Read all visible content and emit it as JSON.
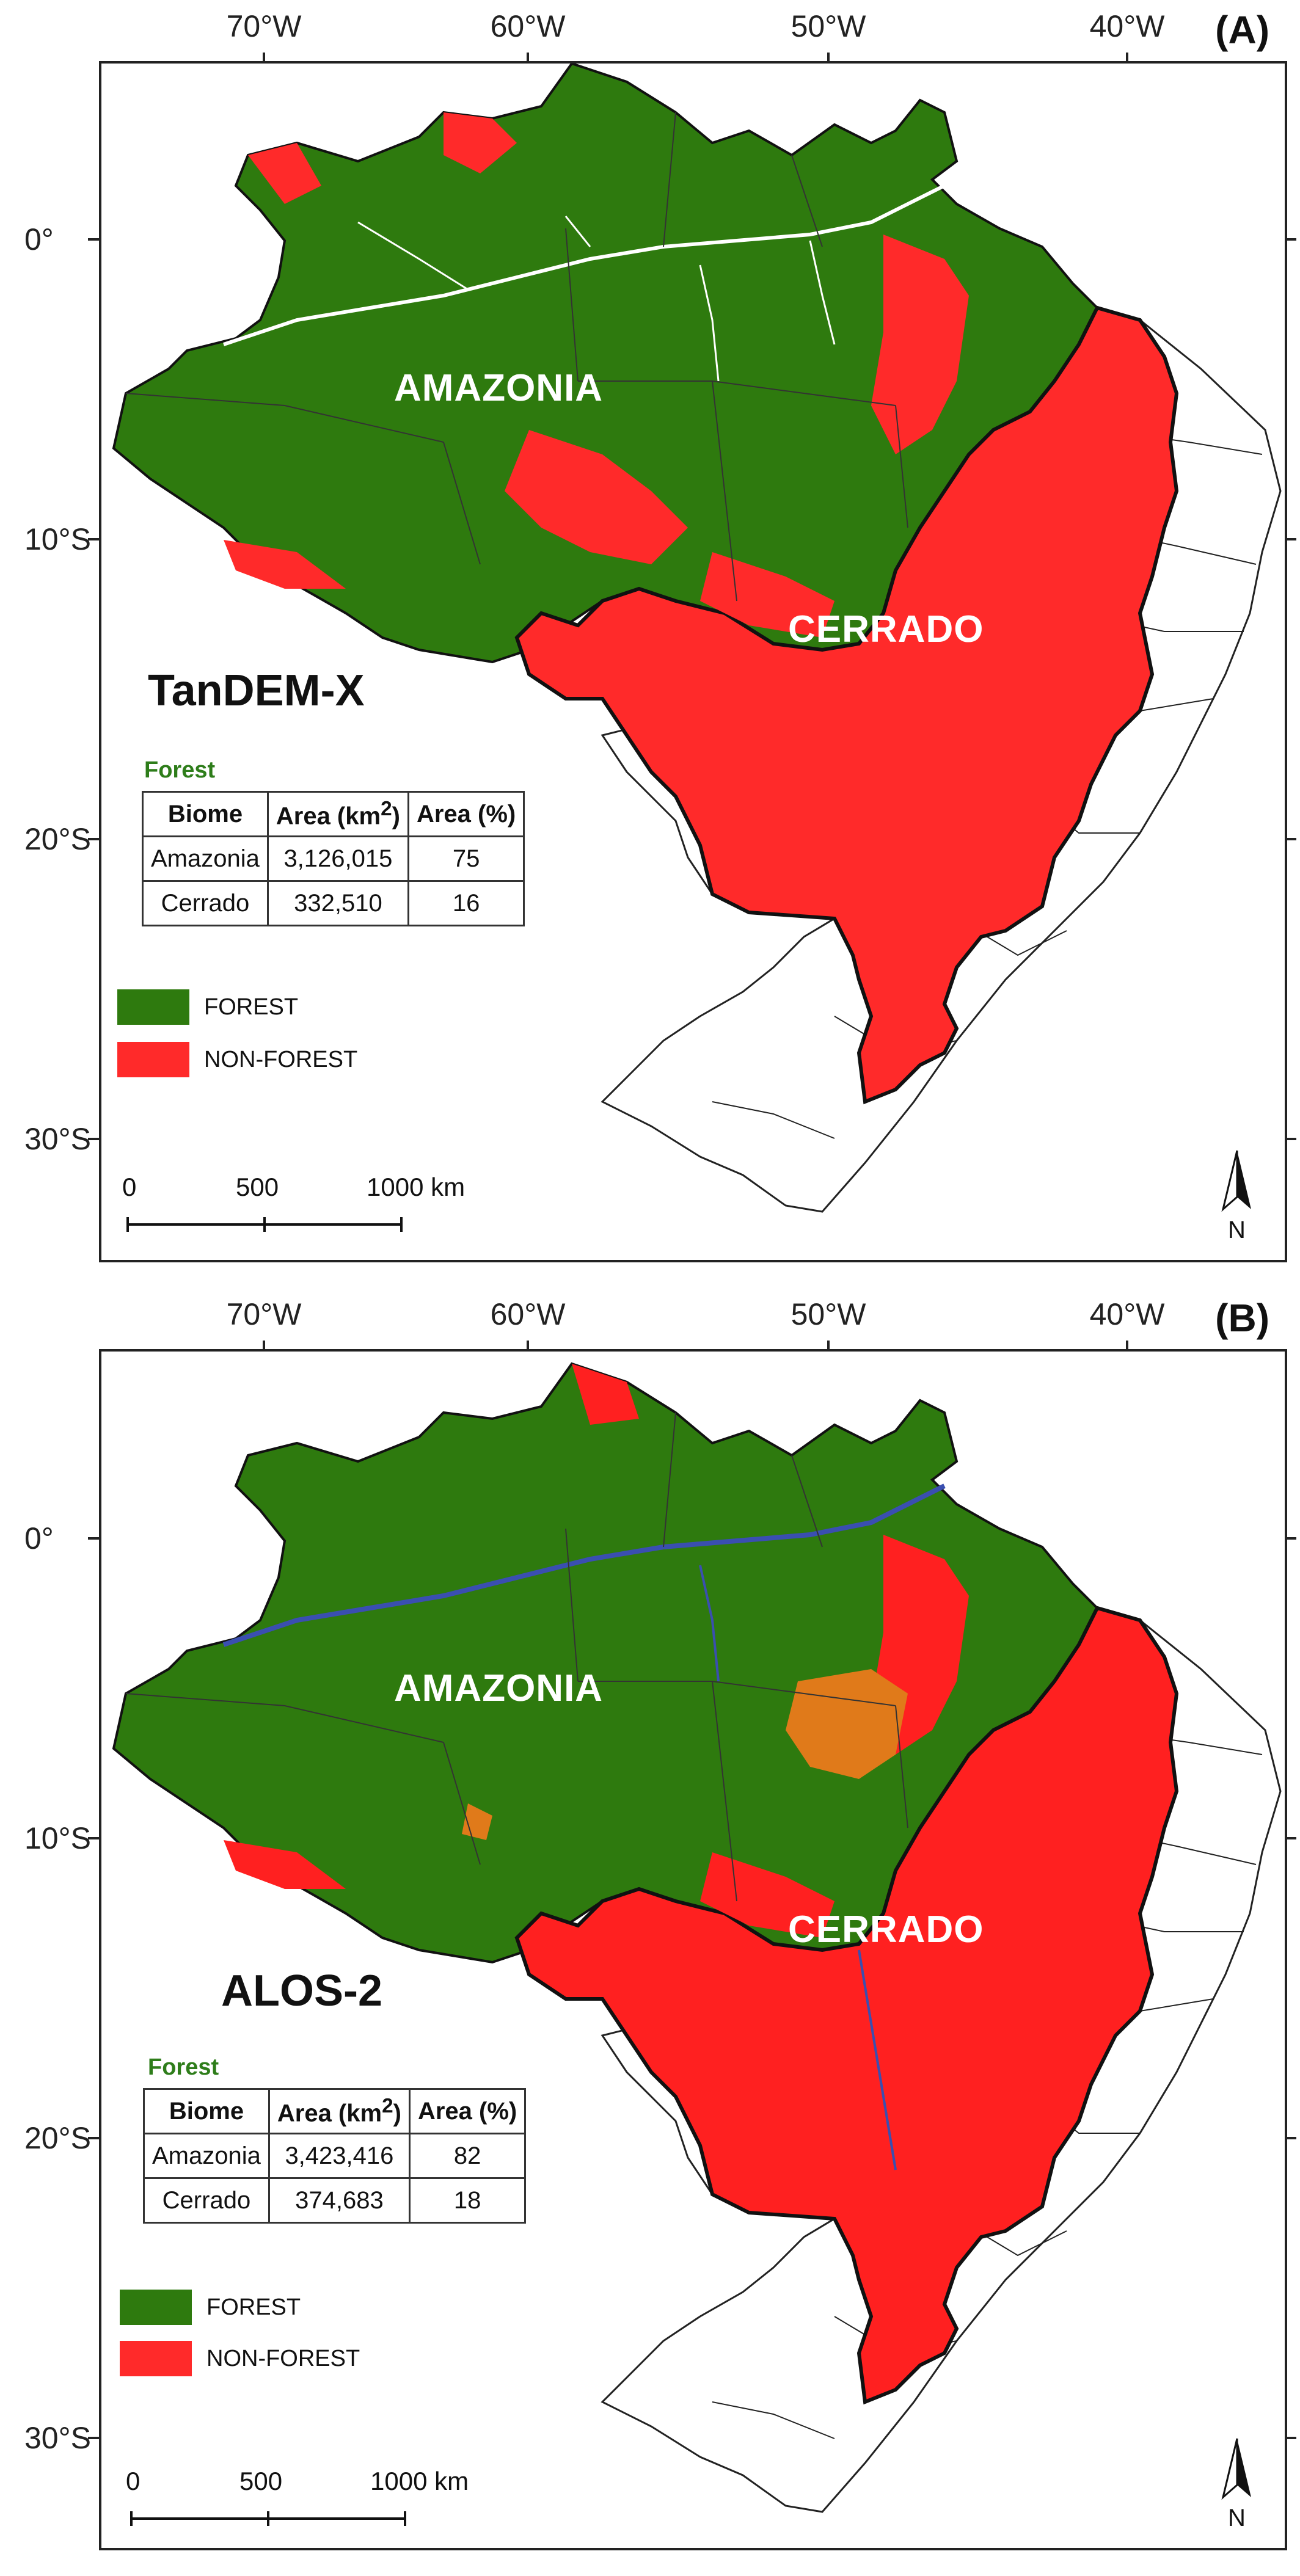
{
  "longitude_ticks": [
    "70°W",
    "60°W",
    "50°W",
    "40°W"
  ],
  "latitude_ticks": [
    "0°",
    "10°S",
    "20°S",
    "30°S"
  ],
  "colors": {
    "forest": "#2e7a0e",
    "non_forest": "#ff2a2a",
    "deforest_orange": "#e07a1a",
    "water_blue": "#3a4fb0",
    "border": "#111111"
  },
  "panels": [
    {
      "label": "(A)",
      "sensor": "TanDEM-X",
      "region_amazonia": "AMAZONIA",
      "region_cerrado": "CERRADO",
      "table": {
        "title": "Forest",
        "header": {
          "biome": "Biome",
          "area_km_prefix": "Area (km",
          "area_km_sup": "2",
          "area_km_suffix": ")",
          "area_pct": "Area (%)"
        },
        "rows": [
          {
            "biome": "Amazonia",
            "area": "3,126,015",
            "pct": "75"
          },
          {
            "biome": "Cerrado",
            "area": "332,510",
            "pct": "16"
          }
        ]
      },
      "legend": {
        "forest": "FOREST",
        "non_forest": "NON-FOREST"
      },
      "scale": {
        "a": "0",
        "b": "500",
        "c": "1000 km"
      },
      "north": "N"
    },
    {
      "label": "(B)",
      "sensor": "ALOS-2",
      "region_amazonia": "AMAZONIA",
      "region_cerrado": "CERRADO",
      "table": {
        "title": "Forest",
        "header": {
          "biome": "Biome",
          "area_km_prefix": "Area (km",
          "area_km_sup": "2",
          "area_km_suffix": ")",
          "area_pct": "Area (%)"
        },
        "rows": [
          {
            "biome": "Amazonia",
            "area": "3,423,416",
            "pct": "82"
          },
          {
            "biome": "Cerrado",
            "area": "374,683",
            "pct": "18"
          }
        ]
      },
      "legend": {
        "forest": "FOREST",
        "non_forest": "NON-FOREST"
      },
      "scale": {
        "a": "0",
        "b": "500",
        "c": "1000 km"
      },
      "north": "N"
    }
  ]
}
